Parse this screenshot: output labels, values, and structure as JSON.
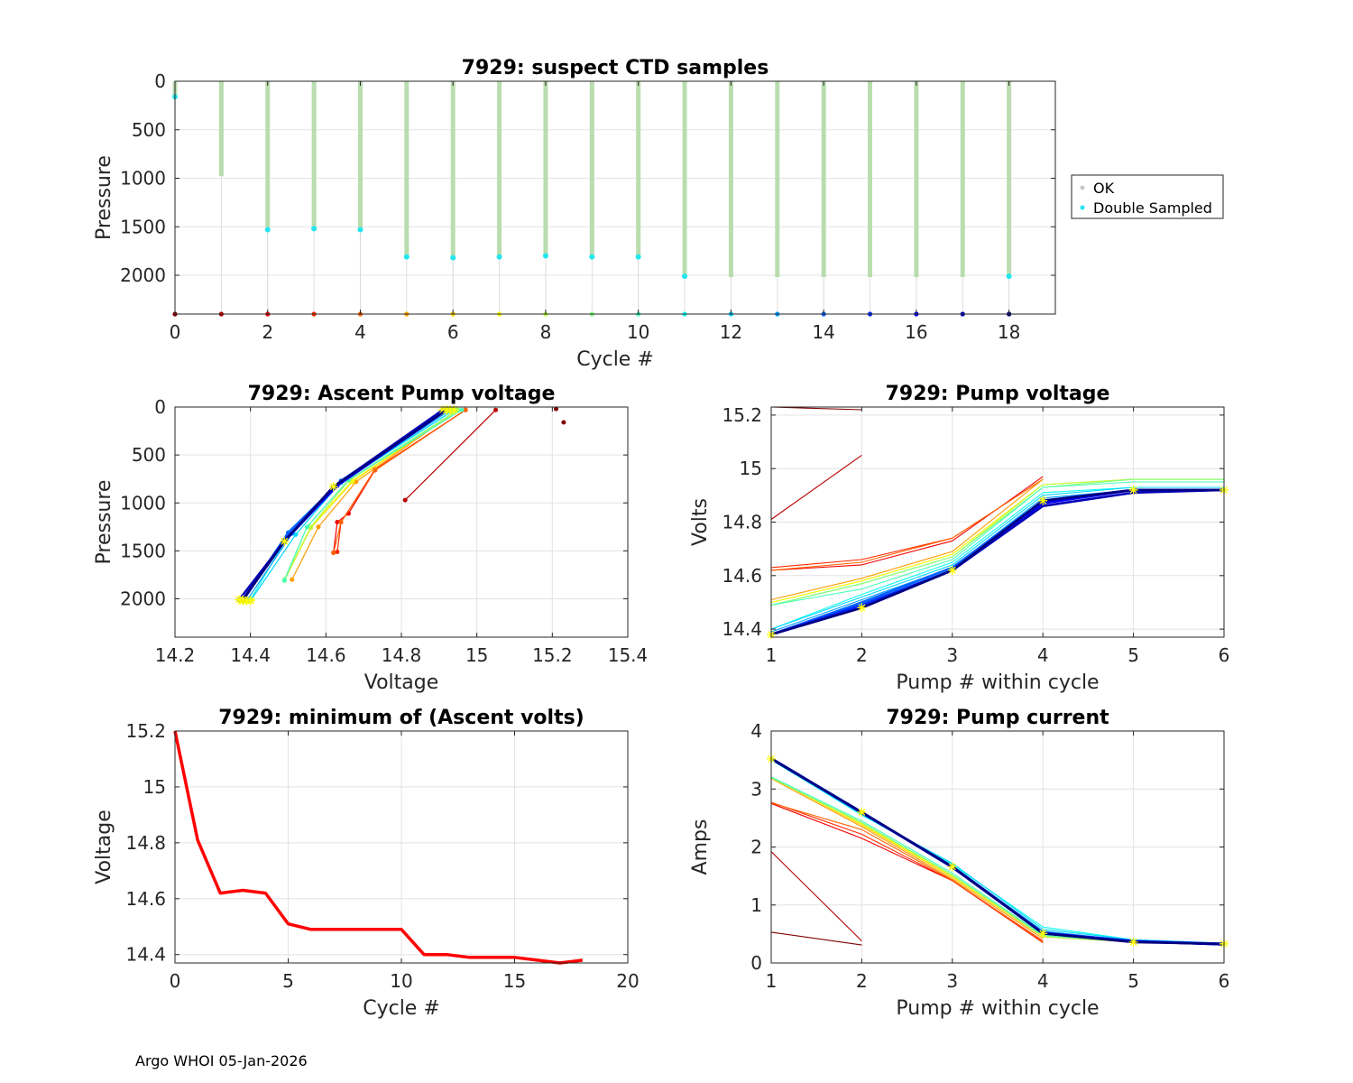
{
  "footer": "Argo WHOI 05-Jan-2026",
  "colors": {
    "ok": "#b9ddae",
    "ok_legend": "#c8c8c8",
    "double": "#22e6f0",
    "min_line": "#ff0000",
    "marker": "#ffff00",
    "grid": "#e3e3e3"
  },
  "chart_data": [
    {
      "id": "suspect",
      "type": "scatter",
      "title": "7929: suspect CTD samples",
      "xlabel": "Cycle #",
      "ylabel": "Pressure",
      "xlim": [
        0,
        19
      ],
      "ylim": [
        0,
        2400
      ],
      "y_reversed": true,
      "xticks": [
        "0",
        "2",
        "4",
        "6",
        "8",
        "10",
        "12",
        "14",
        "16",
        "18"
      ],
      "yticks": [
        "0",
        "500",
        "1000",
        "1500",
        "2000"
      ],
      "legend": {
        "position": "outside-right",
        "entries": [
          "OK",
          "Double Sampled"
        ]
      },
      "cycles": [
        0,
        1,
        2,
        3,
        4,
        5,
        6,
        7,
        8,
        9,
        10,
        11,
        12,
        13,
        14,
        15,
        16,
        17,
        18
      ],
      "ok_max_pressure": [
        180,
        980,
        1520,
        1510,
        1520,
        1800,
        1810,
        1800,
        1800,
        1800,
        1810,
        2010,
        2020,
        2020,
        2020,
        2020,
        2020,
        2020,
        2020
      ],
      "double_sampled_pressure": [
        160,
        null,
        1530,
        1520,
        1530,
        1810,
        1820,
        1810,
        1800,
        1810,
        1810,
        2010,
        null,
        null,
        null,
        null,
        null,
        null,
        2010
      ],
      "cycle_marker_pressure": 2400
    },
    {
      "id": "ascent",
      "type": "line",
      "title": "7929: Ascent Pump voltage",
      "xlabel": "Voltage",
      "ylabel": "Pressure",
      "xlim": [
        14.2,
        15.4
      ],
      "ylim": [
        0,
        2400
      ],
      "y_reversed": true,
      "xticks": [
        "14.2",
        "14.4",
        "14.6",
        "14.8",
        "15",
        "15.2",
        "15.4"
      ],
      "yticks": [
        "0",
        "500",
        "1000",
        "1500",
        "2000"
      ],
      "series": [
        {
          "cycle": 0,
          "x": [
            15.21,
            15.23
          ],
          "y": [
            20,
            160
          ]
        },
        {
          "cycle": 1,
          "x": [
            14.81,
            15.05
          ],
          "y": [
            970,
            30
          ]
        },
        {
          "cycle": 2,
          "x": [
            14.62,
            14.63,
            14.66,
            14.73,
            14.97
          ],
          "y": [
            1520,
            1200,
            1110,
            660,
            30
          ]
        },
        {
          "cycle": 3,
          "x": [
            14.63,
            14.64,
            14.73,
            14.97
          ],
          "y": [
            1510,
            1200,
            650,
            30
          ]
        },
        {
          "cycle": 4,
          "x": [
            14.62,
            14.64,
            14.73,
            14.97
          ],
          "y": [
            1520,
            1200,
            660,
            30
          ]
        },
        {
          "cycle": 5,
          "x": [
            14.51,
            14.58,
            14.68,
            14.95
          ],
          "y": [
            1800,
            1250,
            780,
            30
          ]
        },
        {
          "cycle": 6,
          "x": [
            14.49,
            14.56,
            14.67,
            14.95
          ],
          "y": [
            1810,
            1260,
            780,
            30
          ]
        },
        {
          "cycle": 7,
          "x": [
            14.49,
            14.56,
            14.67,
            14.95
          ],
          "y": [
            1800,
            1250,
            770,
            30
          ]
        },
        {
          "cycle": 8,
          "x": [
            14.49,
            14.56,
            14.66,
            14.95
          ],
          "y": [
            1800,
            1250,
            770,
            30
          ]
        },
        {
          "cycle": 9,
          "x": [
            14.49,
            14.55,
            14.66,
            14.95
          ],
          "y": [
            1800,
            1250,
            760,
            30
          ]
        },
        {
          "cycle": 10,
          "x": [
            14.49,
            14.55,
            14.66,
            14.96
          ],
          "y": [
            1810,
            1250,
            760,
            30
          ]
        },
        {
          "cycle": 11,
          "x": [
            14.4,
            14.5,
            14.64,
            14.94
          ],
          "y": [
            2010,
            1340,
            790,
            30
          ]
        },
        {
          "cycle": 12,
          "x": [
            14.4,
            14.52,
            14.64,
            14.94
          ],
          "y": [
            2020,
            1330,
            780,
            30
          ]
        },
        {
          "cycle": 13,
          "x": [
            14.39,
            14.51,
            14.64,
            14.93
          ],
          "y": [
            2020,
            1320,
            780,
            30
          ]
        },
        {
          "cycle": 14,
          "x": [
            14.38,
            14.5,
            14.64,
            14.92
          ],
          "y": [
            2020,
            1310,
            770,
            30
          ]
        },
        {
          "cycle": 15,
          "x": [
            14.38,
            14.49,
            14.63,
            14.92
          ],
          "y": [
            2010,
            1400,
            820,
            30
          ]
        },
        {
          "cycle": 16,
          "x": [
            14.38,
            14.49,
            14.63,
            14.92
          ],
          "y": [
            2010,
            1390,
            820,
            30
          ]
        },
        {
          "cycle": 17,
          "x": [
            14.37,
            14.49,
            14.62,
            14.91
          ],
          "y": [
            2010,
            1400,
            830,
            30
          ]
        },
        {
          "cycle": 18,
          "x": [
            14.38,
            14.49,
            14.62,
            14.92
          ],
          "y": [
            2010,
            1400,
            830,
            30
          ]
        }
      ]
    },
    {
      "id": "pumpv",
      "type": "line",
      "title": "7929: Pump voltage",
      "xlabel": "Pump # within cycle",
      "ylabel": "Volts",
      "xlim": [
        1,
        6
      ],
      "ylim": [
        14.37,
        15.23
      ],
      "xticks": [
        "1",
        "2",
        "3",
        "4",
        "5",
        "6"
      ],
      "yticks": [
        "14.4",
        "14.6",
        "14.8",
        "15",
        "15.2"
      ],
      "series": [
        {
          "cycle": 0,
          "y": [
            15.23,
            15.22
          ]
        },
        {
          "cycle": 1,
          "y": [
            14.81,
            15.05
          ]
        },
        {
          "cycle": 2,
          "y": [
            14.62,
            14.64,
            14.73,
            14.97
          ]
        },
        {
          "cycle": 3,
          "y": [
            14.63,
            14.66,
            14.74,
            14.96
          ]
        },
        {
          "cycle": 4,
          "y": [
            14.62,
            14.65,
            14.74,
            14.96
          ]
        },
        {
          "cycle": 5,
          "y": [
            14.51,
            14.59,
            14.69,
            14.96
          ]
        },
        {
          "cycle": 6,
          "y": [
            14.5,
            14.58,
            14.68,
            14.94,
            14.96,
            14.96
          ]
        },
        {
          "cycle": 7,
          "y": [
            14.5,
            14.58,
            14.68,
            14.94,
            14.96,
            14.96
          ]
        },
        {
          "cycle": 8,
          "y": [
            14.49,
            14.57,
            14.67,
            14.94,
            14.96,
            14.96
          ]
        },
        {
          "cycle": 9,
          "y": [
            14.49,
            14.57,
            14.67,
            14.93,
            14.96,
            14.96
          ]
        },
        {
          "cycle": 10,
          "y": [
            14.49,
            14.55,
            14.66,
            14.93,
            14.95,
            14.95
          ]
        },
        {
          "cycle": 11,
          "y": [
            14.4,
            14.53,
            14.65,
            14.91,
            14.93,
            14.93
          ]
        },
        {
          "cycle": 12,
          "y": [
            14.4,
            14.52,
            14.64,
            14.9,
            14.93,
            14.93
          ]
        },
        {
          "cycle": 13,
          "y": [
            14.39,
            14.51,
            14.63,
            14.89,
            14.92,
            14.92
          ]
        },
        {
          "cycle": 14,
          "y": [
            14.38,
            14.5,
            14.63,
            14.88,
            14.92,
            14.92
          ]
        },
        {
          "cycle": 15,
          "y": [
            14.38,
            14.49,
            14.62,
            14.88,
            14.92,
            14.92
          ]
        },
        {
          "cycle": 16,
          "y": [
            14.38,
            14.48,
            14.62,
            14.87,
            14.92,
            14.92
          ]
        },
        {
          "cycle": 17,
          "y": [
            14.38,
            14.48,
            14.62,
            14.86,
            14.91,
            14.92
          ]
        },
        {
          "cycle": 18,
          "y": [
            14.38,
            14.48,
            14.62,
            14.88,
            14.92,
            14.92
          ]
        }
      ]
    },
    {
      "id": "minv",
      "type": "line",
      "title": "7929: minimum of (Ascent volts)",
      "xlabel": "Cycle #",
      "ylabel": "Voltage",
      "xlim": [
        0,
        20
      ],
      "ylim": [
        14.37,
        15.2
      ],
      "xticks": [
        "0",
        "5",
        "10",
        "15",
        "20"
      ],
      "yticks": [
        "14.4",
        "14.6",
        "14.8",
        "15",
        "15.2"
      ],
      "x": [
        0,
        1,
        2,
        3,
        4,
        5,
        6,
        7,
        8,
        9,
        10,
        11,
        12,
        13,
        14,
        15,
        16,
        17,
        18
      ],
      "y": [
        15.2,
        14.81,
        14.62,
        14.63,
        14.62,
        14.51,
        14.49,
        14.49,
        14.49,
        14.49,
        14.49,
        14.4,
        14.4,
        14.39,
        14.39,
        14.39,
        14.38,
        14.37,
        14.38
      ]
    },
    {
      "id": "pumpc",
      "type": "line",
      "title": "7929: Pump current",
      "xlabel": "Pump # within cycle",
      "ylabel": "Amps",
      "xlim": [
        1,
        6
      ],
      "ylim": [
        0,
        4
      ],
      "xticks": [
        "1",
        "2",
        "3",
        "4",
        "5",
        "6"
      ],
      "yticks": [
        "0",
        "1",
        "2",
        "3",
        "4"
      ],
      "series": [
        {
          "cycle": 0,
          "y": [
            0.53,
            0.31
          ]
        },
        {
          "cycle": 1,
          "y": [
            1.92,
            0.38
          ]
        },
        {
          "cycle": 2,
          "y": [
            2.75,
            2.15,
            1.42,
            0.35
          ]
        },
        {
          "cycle": 3,
          "y": [
            2.77,
            2.22,
            1.42,
            0.38
          ]
        },
        {
          "cycle": 4,
          "y": [
            2.76,
            2.3,
            1.43,
            0.36
          ]
        },
        {
          "cycle": 5,
          "y": [
            3.18,
            2.35,
            1.45,
            0.42
          ]
        },
        {
          "cycle": 6,
          "y": [
            3.2,
            2.38,
            1.48,
            0.45,
            0.36,
            0.33
          ]
        },
        {
          "cycle": 7,
          "y": [
            3.2,
            2.4,
            1.5,
            0.46,
            0.36,
            0.33
          ]
        },
        {
          "cycle": 8,
          "y": [
            3.19,
            2.42,
            1.51,
            0.47,
            0.36,
            0.33
          ]
        },
        {
          "cycle": 9,
          "y": [
            3.2,
            2.42,
            1.52,
            0.46,
            0.36,
            0.33
          ]
        },
        {
          "cycle": 10,
          "y": [
            3.21,
            2.45,
            1.55,
            0.48,
            0.37,
            0.33
          ]
        },
        {
          "cycle": 11,
          "y": [
            3.5,
            2.55,
            1.7,
            0.62,
            0.4,
            0.34
          ]
        },
        {
          "cycle": 12,
          "y": [
            3.52,
            2.56,
            1.72,
            0.58,
            0.4,
            0.34
          ]
        },
        {
          "cycle": 13,
          "y": [
            3.52,
            2.58,
            1.68,
            0.55,
            0.38,
            0.33
          ]
        },
        {
          "cycle": 14,
          "y": [
            3.53,
            2.6,
            1.65,
            0.52,
            0.38,
            0.33
          ]
        },
        {
          "cycle": 15,
          "y": [
            3.52,
            2.6,
            1.66,
            0.52,
            0.37,
            0.33
          ]
        },
        {
          "cycle": 16,
          "y": [
            3.52,
            2.59,
            1.66,
            0.51,
            0.37,
            0.32
          ]
        },
        {
          "cycle": 17,
          "y": [
            3.53,
            2.6,
            1.65,
            0.51,
            0.37,
            0.32
          ]
        },
        {
          "cycle": 18,
          "y": [
            3.52,
            2.6,
            1.66,
            0.51,
            0.36,
            0.33
          ]
        }
      ]
    }
  ]
}
